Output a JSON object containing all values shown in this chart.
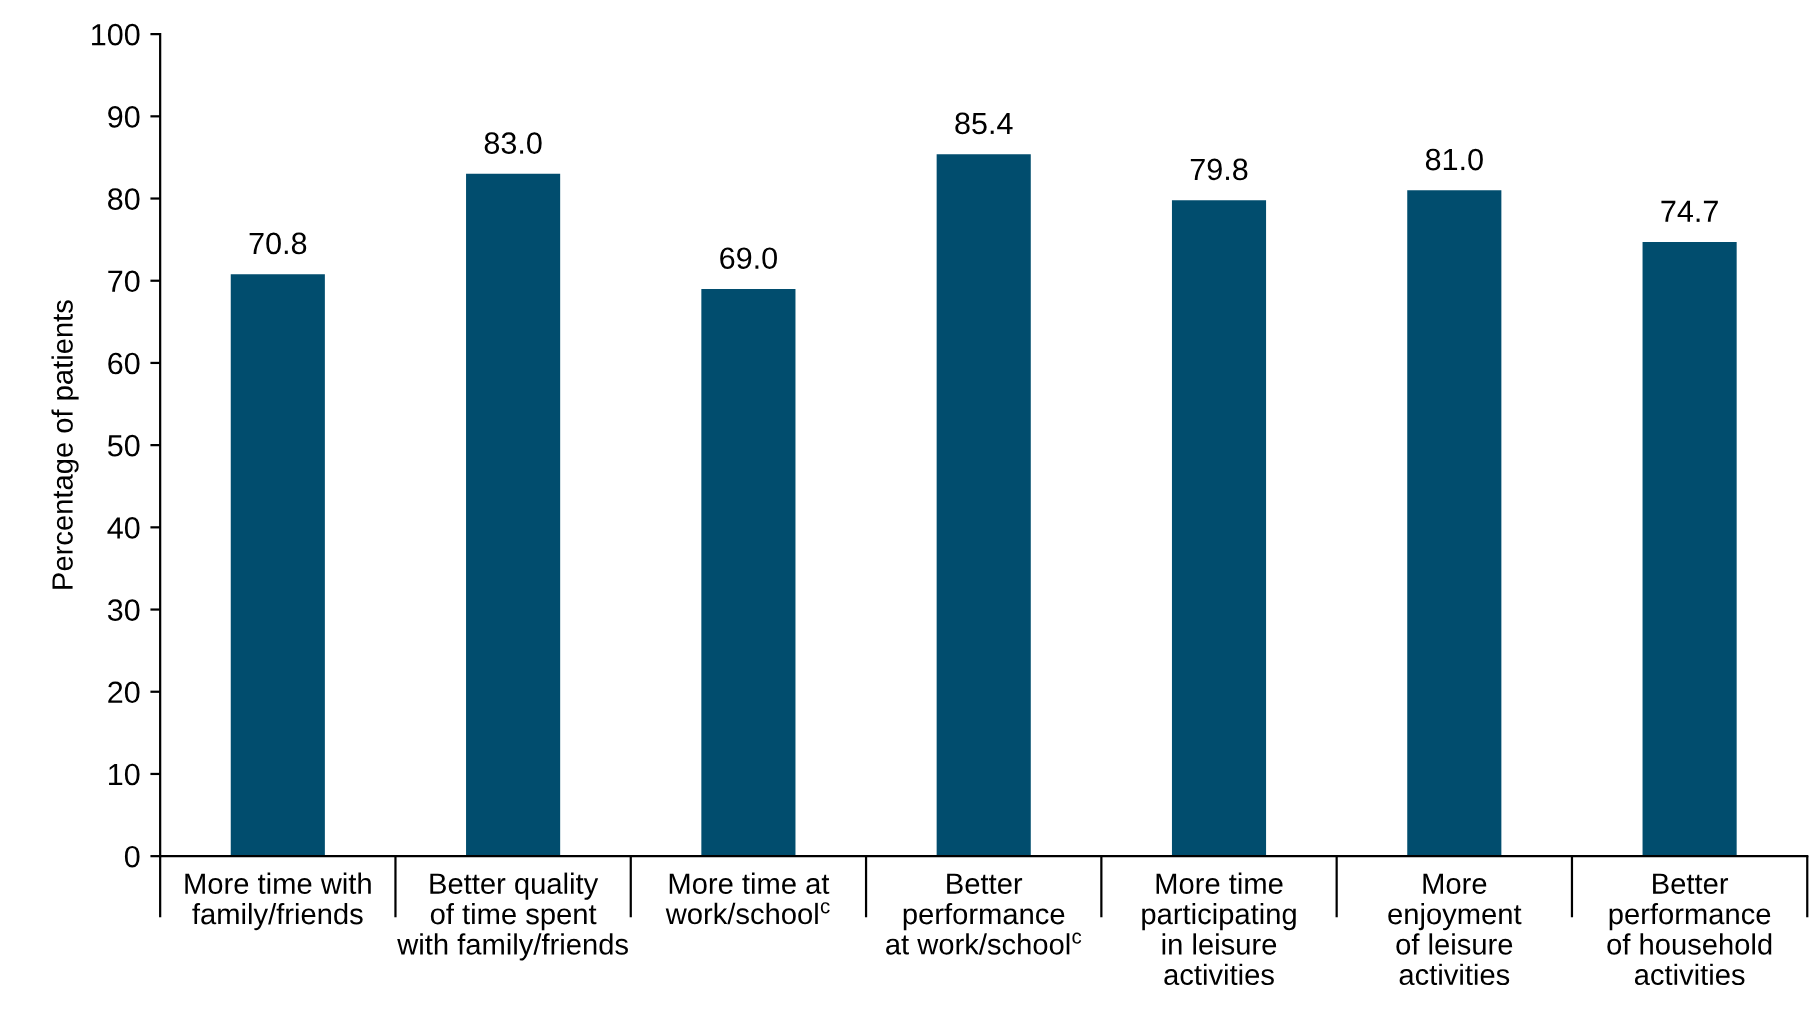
{
  "chart_data": {
    "type": "bar",
    "ylabel": "Percentage of patients",
    "categories": [
      "More time with\nfamily/friends",
      "Better quality\nof time spent\nwith family/friends",
      "More time at\nwork/school$^{c}$",
      "Better\nperformance\nat work/school$^{c}$",
      "More time\nparticipating\nin leisure\nactivities",
      "More\nenjoyment\nof leisure\nactivities",
      "Better\nperformance\nof household\nactivities"
    ],
    "values": [
      70.8,
      83.0,
      69.0,
      85.4,
      79.8,
      81.0,
      74.7
    ],
    "value_labels": [
      "70.8",
      "83.0",
      "69.0",
      "85.4",
      "79.8",
      "81.0",
      "74.7"
    ],
    "color": "#014d6e",
    "ylim": [
      0,
      100
    ],
    "yticks": [
      0,
      10,
      20,
      30,
      40,
      50,
      60,
      70,
      80,
      90,
      100
    ],
    "grid": false,
    "legend": false
  }
}
